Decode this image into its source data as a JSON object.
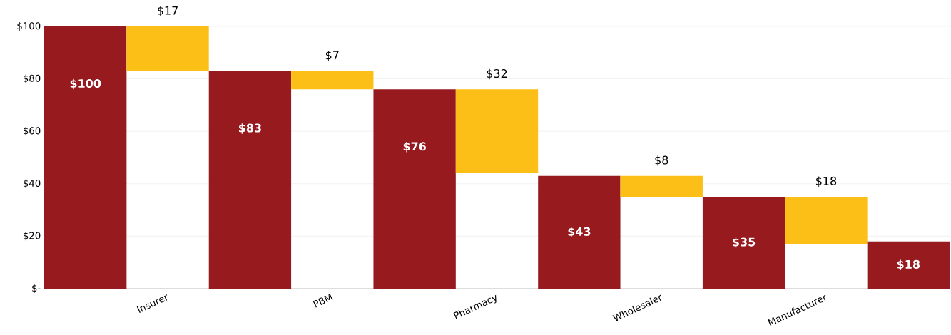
{
  "chart_data": {
    "type": "bar",
    "categories": [
      null,
      "Insurer",
      null,
      "PBM",
      null,
      "Pharmacy",
      null,
      "Wholesaler",
      null,
      "Manufacturer",
      null
    ],
    "values": [
      100,
      17,
      83,
      7,
      76,
      32,
      43,
      8,
      35,
      18,
      18
    ],
    "base": [
      0,
      83,
      0,
      76,
      0,
      44,
      0,
      35,
      0,
      17,
      0
    ],
    "colors": [
      "#961a1e",
      "#fcbf17",
      "#961a1e",
      "#fcbf17",
      "#961a1e",
      "#fcbf17",
      "#961a1e",
      "#fcbf17",
      "#961a1e",
      "#fcbf17",
      "#961a1e"
    ],
    "value_labels": [
      "$100",
      "$17",
      "$83",
      "$7",
      "$76",
      "$32",
      "$43",
      "$8",
      "$35",
      "$18",
      "$18"
    ],
    "ylim": [
      0,
      100
    ],
    "yticks": [
      {
        "value": 0,
        "label": "$-"
      },
      {
        "value": 20,
        "label": "$20"
      },
      {
        "value": 40,
        "label": "$40"
      },
      {
        "value": 60,
        "label": "$60"
      },
      {
        "value": 80,
        "label": "$80"
      },
      {
        "value": 100,
        "label": "$100"
      }
    ],
    "grid": "y"
  }
}
